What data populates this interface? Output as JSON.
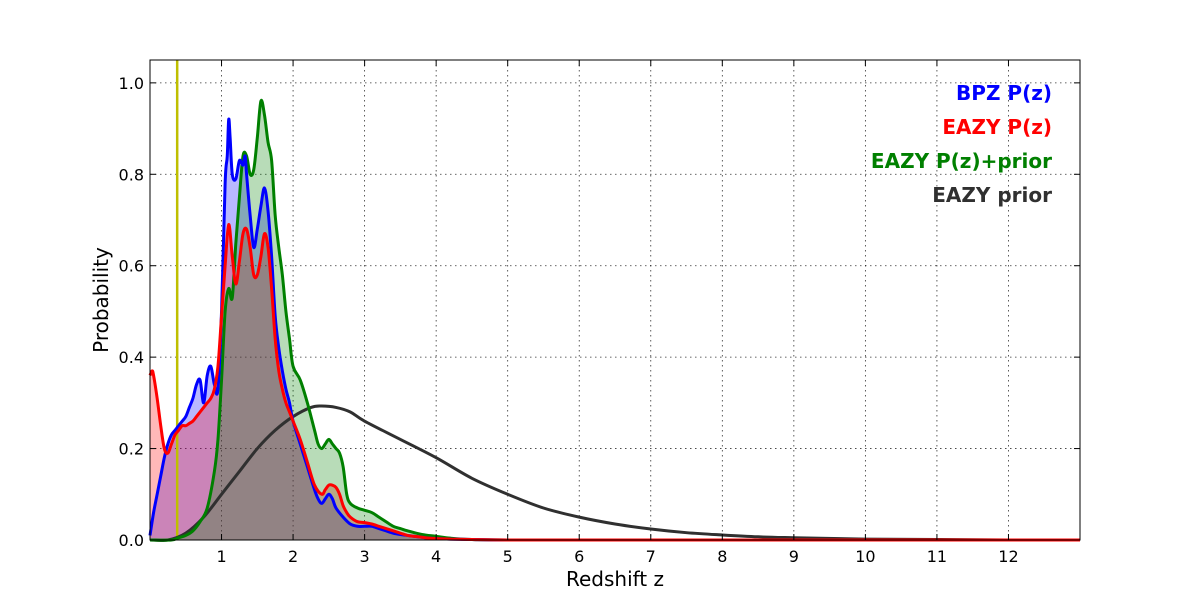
{
  "chart_data": {
    "type": "line",
    "xlabel": "Redshift z",
    "ylabel": "Probability",
    "xlim": [
      0,
      13
    ],
    "ylim": [
      0,
      1.05
    ],
    "xticks": [
      1,
      2,
      3,
      4,
      5,
      6,
      7,
      8,
      9,
      10,
      11,
      12
    ],
    "xtick_labels": [
      "1",
      "2",
      "3",
      "4",
      "5",
      "6",
      "7",
      "8",
      "9",
      "10",
      "11",
      "12"
    ],
    "yticks": [
      0.0,
      0.2,
      0.4,
      0.6,
      0.8,
      1.0
    ],
    "ytick_labels": [
      "0.0",
      "0.2",
      "0.4",
      "0.6",
      "0.8",
      "1.0"
    ],
    "grid": true,
    "legend_position": "top-right",
    "vline": {
      "x": 0.38,
      "color": "#bfbf00"
    },
    "series": [
      {
        "name": "BPZ P(z)",
        "color": "#0000ff",
        "fill": "#0000ff",
        "x": [
          0,
          0.05,
          0.1,
          0.15,
          0.2,
          0.25,
          0.3,
          0.35,
          0.4,
          0.45,
          0.5,
          0.55,
          0.6,
          0.65,
          0.7,
          0.75,
          0.8,
          0.85,
          0.9,
          0.95,
          1.0,
          1.05,
          1.08,
          1.1,
          1.12,
          1.15,
          1.2,
          1.25,
          1.3,
          1.33,
          1.35,
          1.4,
          1.45,
          1.5,
          1.55,
          1.6,
          1.65,
          1.7,
          1.75,
          1.8,
          1.85,
          1.9,
          1.95,
          2.0,
          2.1,
          2.2,
          2.3,
          2.35,
          2.4,
          2.45,
          2.5,
          2.55,
          2.6,
          2.7,
          2.8,
          2.9,
          3.0,
          3.1,
          3.2,
          3.3,
          3.4,
          3.5,
          3.6,
          3.7,
          3.8,
          3.9,
          4.0,
          4.2,
          4.5,
          5.0,
          6.0,
          8.0,
          10.0,
          12.0,
          13.0
        ],
        "y": [
          0.01,
          0.06,
          0.1,
          0.14,
          0.18,
          0.21,
          0.23,
          0.24,
          0.25,
          0.26,
          0.27,
          0.29,
          0.31,
          0.34,
          0.35,
          0.3,
          0.36,
          0.38,
          0.34,
          0.33,
          0.5,
          0.78,
          0.84,
          0.92,
          0.88,
          0.8,
          0.79,
          0.83,
          0.82,
          0.84,
          0.8,
          0.71,
          0.64,
          0.68,
          0.73,
          0.77,
          0.72,
          0.62,
          0.49,
          0.42,
          0.37,
          0.33,
          0.3,
          0.26,
          0.21,
          0.16,
          0.11,
          0.09,
          0.08,
          0.09,
          0.1,
          0.09,
          0.07,
          0.05,
          0.035,
          0.03,
          0.03,
          0.03,
          0.025,
          0.02,
          0.015,
          0.012,
          0.01,
          0.008,
          0.006,
          0.004,
          0.003,
          0.002,
          0.001,
          0,
          0,
          0,
          0,
          0,
          0
        ]
      },
      {
        "name": "EAZY P(z)",
        "color": "#ff0000",
        "fill": "#ff0000",
        "x": [
          0,
          0.03,
          0.05,
          0.1,
          0.15,
          0.2,
          0.25,
          0.3,
          0.35,
          0.4,
          0.45,
          0.5,
          0.55,
          0.6,
          0.65,
          0.7,
          0.75,
          0.8,
          0.85,
          0.9,
          0.95,
          1.0,
          1.05,
          1.1,
          1.15,
          1.2,
          1.25,
          1.3,
          1.35,
          1.4,
          1.45,
          1.5,
          1.55,
          1.6,
          1.65,
          1.7,
          1.75,
          1.8,
          1.85,
          1.9,
          1.95,
          2.0,
          2.1,
          2.2,
          2.3,
          2.4,
          2.45,
          2.5,
          2.55,
          2.6,
          2.65,
          2.7,
          2.75,
          2.8,
          2.9,
          3.0,
          3.1,
          3.2,
          3.3,
          3.4,
          3.5,
          3.6,
          3.7,
          3.8,
          3.9,
          4.0,
          4.2,
          4.5,
          5.0,
          6.0,
          8.0,
          10.0,
          12.0,
          13.0
        ],
        "y": [
          0.36,
          0.37,
          0.36,
          0.31,
          0.25,
          0.2,
          0.19,
          0.21,
          0.23,
          0.24,
          0.25,
          0.25,
          0.255,
          0.26,
          0.27,
          0.28,
          0.29,
          0.3,
          0.31,
          0.33,
          0.38,
          0.49,
          0.6,
          0.69,
          0.62,
          0.56,
          0.61,
          0.67,
          0.68,
          0.64,
          0.58,
          0.58,
          0.62,
          0.67,
          0.64,
          0.55,
          0.44,
          0.37,
          0.33,
          0.3,
          0.28,
          0.26,
          0.22,
          0.17,
          0.12,
          0.1,
          0.11,
          0.12,
          0.12,
          0.115,
          0.1,
          0.075,
          0.06,
          0.05,
          0.04,
          0.038,
          0.035,
          0.03,
          0.025,
          0.02,
          0.015,
          0.01,
          0.008,
          0.006,
          0.004,
          0.003,
          0.002,
          0.001,
          0,
          0,
          0,
          0,
          0,
          0
        ]
      },
      {
        "name": "EAZY P(z)+prior",
        "color": "#008000",
        "fill": "#008000",
        "x": [
          0,
          0.3,
          0.4,
          0.5,
          0.6,
          0.7,
          0.8,
          0.9,
          0.95,
          1.0,
          1.05,
          1.1,
          1.15,
          1.2,
          1.25,
          1.3,
          1.35,
          1.4,
          1.45,
          1.5,
          1.55,
          1.6,
          1.65,
          1.7,
          1.75,
          1.8,
          1.85,
          1.9,
          1.95,
          2.0,
          2.1,
          2.2,
          2.3,
          2.35,
          2.4,
          2.45,
          2.5,
          2.55,
          2.6,
          2.65,
          2.7,
          2.75,
          2.8,
          2.9,
          3.0,
          3.1,
          3.2,
          3.3,
          3.4,
          3.5,
          3.6,
          3.8,
          4.0,
          4.2,
          4.5,
          5.0,
          6.0,
          8.0,
          10.0,
          12.0,
          13.0
        ],
        "y": [
          0,
          0,
          0.005,
          0.01,
          0.02,
          0.04,
          0.07,
          0.15,
          0.22,
          0.35,
          0.5,
          0.55,
          0.53,
          0.65,
          0.75,
          0.84,
          0.84,
          0.8,
          0.81,
          0.88,
          0.96,
          0.93,
          0.87,
          0.83,
          0.71,
          0.64,
          0.58,
          0.5,
          0.44,
          0.38,
          0.35,
          0.3,
          0.24,
          0.21,
          0.2,
          0.21,
          0.22,
          0.21,
          0.2,
          0.19,
          0.16,
          0.1,
          0.08,
          0.07,
          0.065,
          0.06,
          0.05,
          0.04,
          0.03,
          0.025,
          0.02,
          0.012,
          0.008,
          0.004,
          0.001,
          0,
          0,
          0,
          0,
          0,
          0
        ]
      },
      {
        "name": "EAZY prior",
        "color": "#303030",
        "fill": null,
        "x": [
          0,
          0.25,
          0.5,
          0.75,
          1.0,
          1.25,
          1.5,
          1.75,
          2.0,
          2.25,
          2.4,
          2.6,
          2.8,
          3.0,
          3.5,
          4.0,
          4.5,
          5.0,
          5.5,
          6.0,
          6.5,
          7.0,
          7.5,
          8.0,
          8.5,
          9.0,
          10.0,
          11.0,
          12.0,
          13.0
        ],
        "y": [
          0,
          0.0,
          0.015,
          0.05,
          0.1,
          0.15,
          0.2,
          0.24,
          0.27,
          0.29,
          0.293,
          0.29,
          0.28,
          0.26,
          0.22,
          0.18,
          0.135,
          0.1,
          0.07,
          0.05,
          0.035,
          0.024,
          0.016,
          0.011,
          0.007,
          0.005,
          0.002,
          0.001,
          0.0,
          0.0
        ]
      }
    ]
  }
}
